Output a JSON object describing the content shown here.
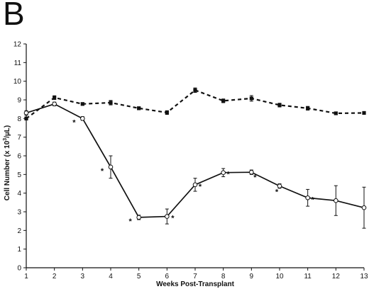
{
  "panel_label": "B",
  "chart_data": {
    "type": "line",
    "xlabel": "Weeks Post-Transplant",
    "ylabel_prefix": "Cell Number (x 10",
    "ylabel_sup": "3",
    "ylabel_suffix": "/µL)",
    "xlim": [
      1,
      13
    ],
    "ylim": [
      0,
      12
    ],
    "x_ticks": [
      "1",
      "2",
      "3",
      "4",
      "5",
      "6",
      "7",
      "8",
      "9",
      "10",
      "11",
      "12",
      "13"
    ],
    "y_ticks": [
      "0",
      "1",
      "2",
      "3",
      "4",
      "5",
      "6",
      "7",
      "8",
      "9",
      "10",
      "11",
      "12"
    ],
    "grid": false,
    "series": [
      {
        "line_style": "dashed",
        "marker": "filled-square",
        "x": [
          1,
          2,
          3,
          4,
          5,
          6,
          7,
          8,
          9,
          10,
          11,
          12,
          13
        ],
        "y": [
          8.0,
          9.12,
          8.78,
          8.85,
          8.55,
          8.32,
          9.52,
          8.95,
          9.08,
          8.72,
          8.55,
          8.28,
          8.3
        ],
        "err": [
          0.08,
          0.1,
          0.05,
          0.12,
          0.08,
          0.1,
          0.12,
          0.1,
          0.15,
          0.1,
          0.1,
          0.07,
          0.05
        ]
      },
      {
        "line_style": "solid",
        "marker": "open-circle",
        "x": [
          1,
          2,
          3,
          4,
          5,
          6,
          7,
          8,
          9,
          10,
          11,
          12,
          13
        ],
        "y": [
          8.3,
          8.78,
          8.0,
          5.4,
          2.7,
          2.75,
          4.45,
          5.1,
          5.12,
          4.38,
          3.75,
          3.6,
          3.22
        ],
        "err": [
          0.12,
          0.1,
          0.1,
          0.6,
          0.12,
          0.4,
          0.35,
          0.22,
          0.12,
          0.12,
          0.45,
          0.8,
          1.1
        ]
      }
    ],
    "significance_marker": "*",
    "significant_weeks": [
      3,
      4,
      5,
      6,
      7,
      8,
      9,
      10,
      11
    ]
  }
}
